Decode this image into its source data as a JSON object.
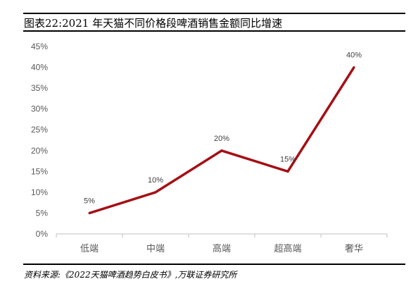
{
  "header": {
    "title": "图表22:2021 年天猫不同价格段啤酒销售金额同比增速"
  },
  "footer": {
    "source": "资料来源:《2022天猫啤酒趋势白皮书》,万联证券研究所"
  },
  "chart_data": {
    "type": "line",
    "title": "图表22:2021 年天猫不同价格段啤酒销售金额同比增速",
    "xlabel": "",
    "ylabel": "",
    "categories": [
      "低端",
      "中端",
      "高端",
      "超高端",
      "奢华"
    ],
    "series": [
      {
        "values": [
          5,
          10,
          20,
          15,
          40
        ],
        "color": "#A50F15"
      }
    ],
    "data_labels": [
      "5%",
      "10%",
      "20%",
      "15%",
      "40%"
    ],
    "ylim": [
      0,
      45
    ],
    "yticks": [
      0,
      5,
      10,
      15,
      20,
      25,
      30,
      35,
      40,
      45
    ],
    "ytick_labels": [
      "0%",
      "5%",
      "10%",
      "15%",
      "20%",
      "25%",
      "30%",
      "35%",
      "40%",
      "45%"
    ],
    "grid": false,
    "legend": "none"
  }
}
